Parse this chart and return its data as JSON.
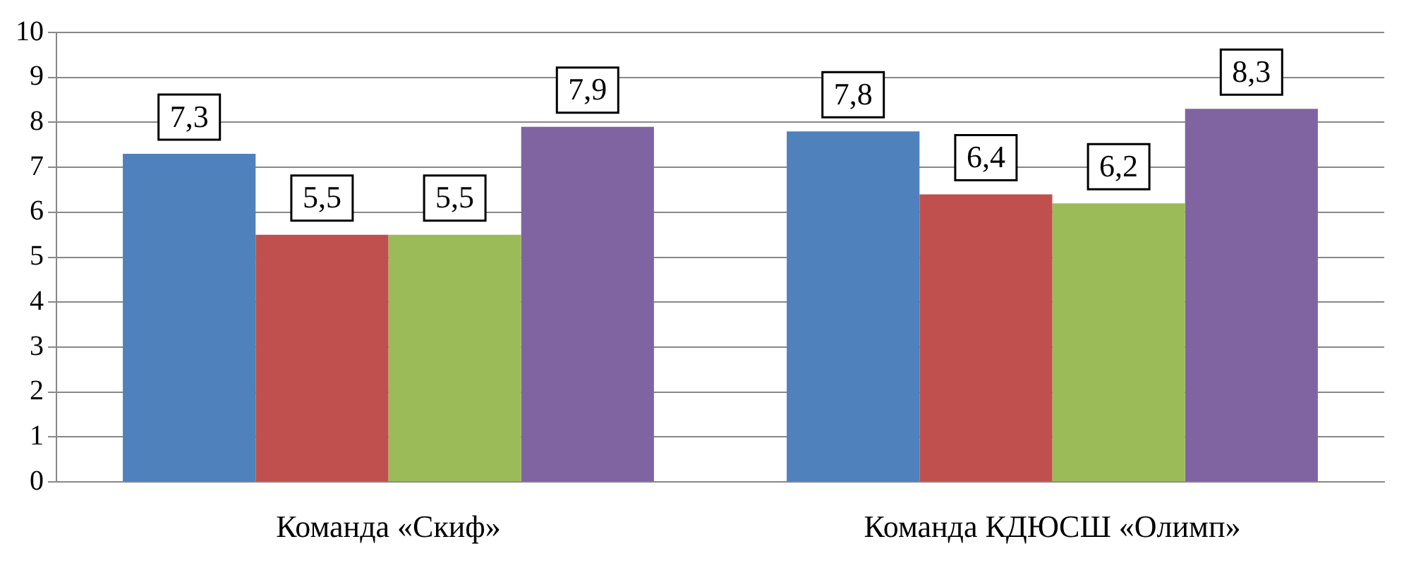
{
  "chart_data": {
    "type": "bar",
    "categories": [
      "Команда «Скиф»",
      "Команда КДЮСШ «Олимп»"
    ],
    "series": [
      {
        "color": "#4f81bd",
        "values": [
          7.3,
          7.8
        ],
        "value_labels": [
          "7,3",
          "7,8"
        ]
      },
      {
        "color": "#c0504d",
        "values": [
          5.5,
          6.4
        ],
        "value_labels": [
          "5,5",
          "6,4"
        ]
      },
      {
        "color": "#9bbb59",
        "values": [
          5.5,
          6.2
        ],
        "value_labels": [
          "5,5",
          "6,2"
        ]
      },
      {
        "color": "#8064a2",
        "values": [
          7.9,
          8.3
        ],
        "value_labels": [
          "7,9",
          "8,3"
        ]
      }
    ],
    "ylim": [
      0,
      10
    ],
    "yticks": [
      0,
      1,
      2,
      3,
      4,
      5,
      6,
      7,
      8,
      9,
      10
    ],
    "grid": "y",
    "legend": false
  }
}
